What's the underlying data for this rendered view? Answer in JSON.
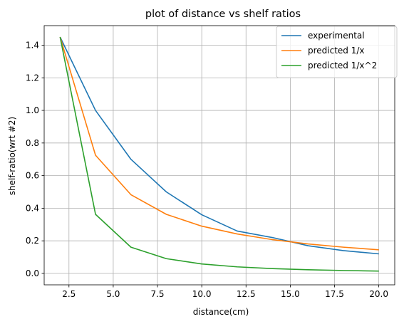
{
  "chart_data": {
    "type": "line",
    "title": "plot of distance vs shelf ratios",
    "xlabel": "distance(cm)",
    "ylabel": "shelf-ratio(wrt #2)",
    "xlim": [
      1.1,
      20.9
    ],
    "ylim": [
      -0.07,
      1.52
    ],
    "xticks": [
      2.5,
      5.0,
      7.5,
      10.0,
      12.5,
      15.0,
      17.5,
      20.0
    ],
    "xtick_labels": [
      "2.5",
      "5.0",
      "7.5",
      "10.0",
      "12.5",
      "15.0",
      "17.5",
      "20.0"
    ],
    "yticks": [
      0.0,
      0.2,
      0.4,
      0.6,
      0.8,
      1.0,
      1.2,
      1.4
    ],
    "ytick_labels": [
      "0.0",
      "0.2",
      "0.4",
      "0.6",
      "0.8",
      "1.0",
      "1.2",
      "1.4"
    ],
    "grid": true,
    "legend_position": "top-right",
    "x": [
      2,
      4,
      6,
      8,
      10,
      12,
      14,
      16,
      18,
      20
    ],
    "series": [
      {
        "name": "experimental",
        "color": "#1f77b4",
        "values": [
          1.45,
          1.0,
          0.7,
          0.5,
          0.36,
          0.26,
          0.22,
          0.17,
          0.14,
          0.12
        ]
      },
      {
        "name": "predicted 1/x",
        "color": "#ff7f0e",
        "values": [
          1.45,
          0.725,
          0.483,
          0.3625,
          0.29,
          0.242,
          0.207,
          0.181,
          0.161,
          0.145
        ]
      },
      {
        "name": "predicted 1/x^2",
        "color": "#2ca02c",
        "values": [
          1.45,
          0.3625,
          0.161,
          0.0906,
          0.058,
          0.0403,
          0.0296,
          0.0227,
          0.0179,
          0.0145
        ]
      }
    ]
  }
}
